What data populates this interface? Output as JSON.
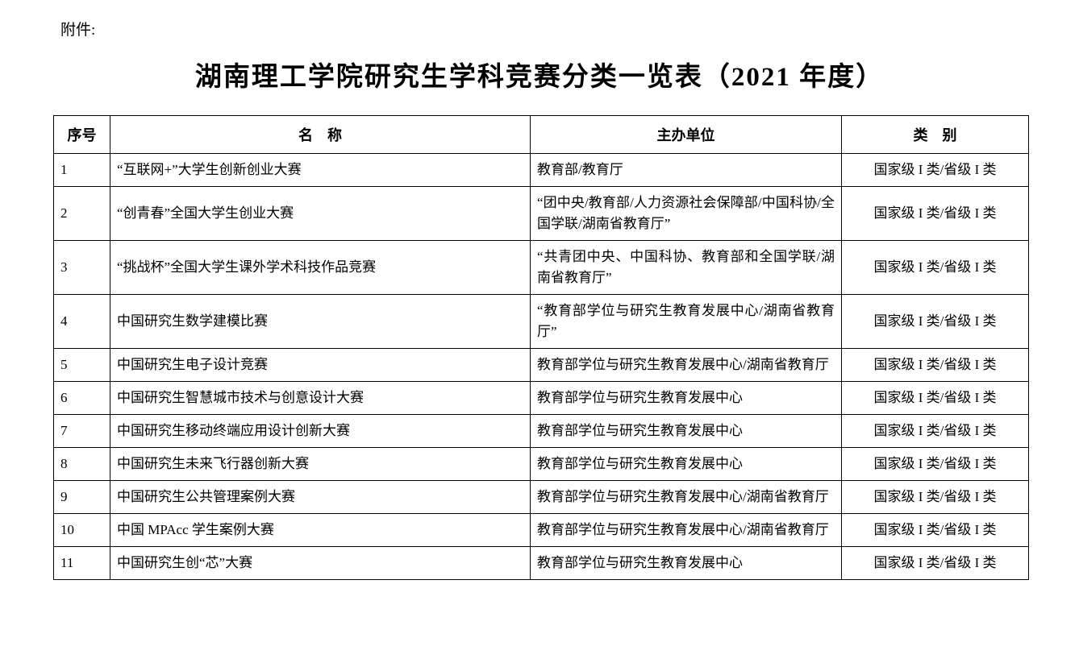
{
  "page": {
    "attachment_label": "附件:",
    "title": "湖南理工学院研究生学科竞赛分类一览表（2021 年度）"
  },
  "table": {
    "headers": {
      "no": "序号",
      "name": "名　称",
      "organizer": "主办单位",
      "category": "类　别"
    },
    "rows": [
      {
        "no": "1",
        "name": "“互联网+”大学生创新创业大赛",
        "organizer": "教育部/教育厅",
        "category": "国家级 I 类/省级 I 类"
      },
      {
        "no": "2",
        "name": "“创青春”全国大学生创业大赛",
        "organizer": "“团中央/教育部/人力资源社会保障部/中国科协/全国学联/湖南省教育厅”",
        "category": "国家级 I 类/省级 I 类"
      },
      {
        "no": "3",
        "name": "“挑战杯”全国大学生课外学术科技作品竞赛",
        "organizer": "“共青团中央、中国科协、教育部和全国学联/湖南省教育厅”",
        "category": "国家级 I 类/省级 I 类"
      },
      {
        "no": "4",
        "name": "中国研究生数学建模比赛",
        "organizer": "“教育部学位与研究生教育发展中心/湖南省教育厅”",
        "category": "国家级 I 类/省级 I 类"
      },
      {
        "no": "5",
        "name": "中国研究生电子设计竞赛",
        "organizer": "教育部学位与研究生教育发展中心/湖南省教育厅",
        "category": "国家级 I 类/省级 I 类"
      },
      {
        "no": "6",
        "name": "中国研究生智慧城市技术与创意设计大赛",
        "organizer": "教育部学位与研究生教育发展中心",
        "category": "国家级 I 类/省级 I 类"
      },
      {
        "no": "7",
        "name": "中国研究生移动终端应用设计创新大赛",
        "organizer": "教育部学位与研究生教育发展中心",
        "category": "国家级 I 类/省级 I 类"
      },
      {
        "no": "8",
        "name": "中国研究生未来飞行器创新大赛",
        "organizer": "教育部学位与研究生教育发展中心",
        "category": "国家级 I 类/省级 I 类"
      },
      {
        "no": "9",
        "name": "中国研究生公共管理案例大赛",
        "organizer": "教育部学位与研究生教育发展中心/湖南省教育厅",
        "category": "国家级 I 类/省级 I 类"
      },
      {
        "no": "10",
        "name": "中国 MPAcc 学生案例大赛",
        "organizer": "教育部学位与研究生教育发展中心/湖南省教育厅",
        "category": "国家级 I 类/省级 I 类"
      },
      {
        "no": "11",
        "name": "中国研究生创“芯”大赛",
        "organizer": "教育部学位与研究生教育发展中心",
        "category": "国家级 I 类/省级 I 类"
      }
    ]
  }
}
